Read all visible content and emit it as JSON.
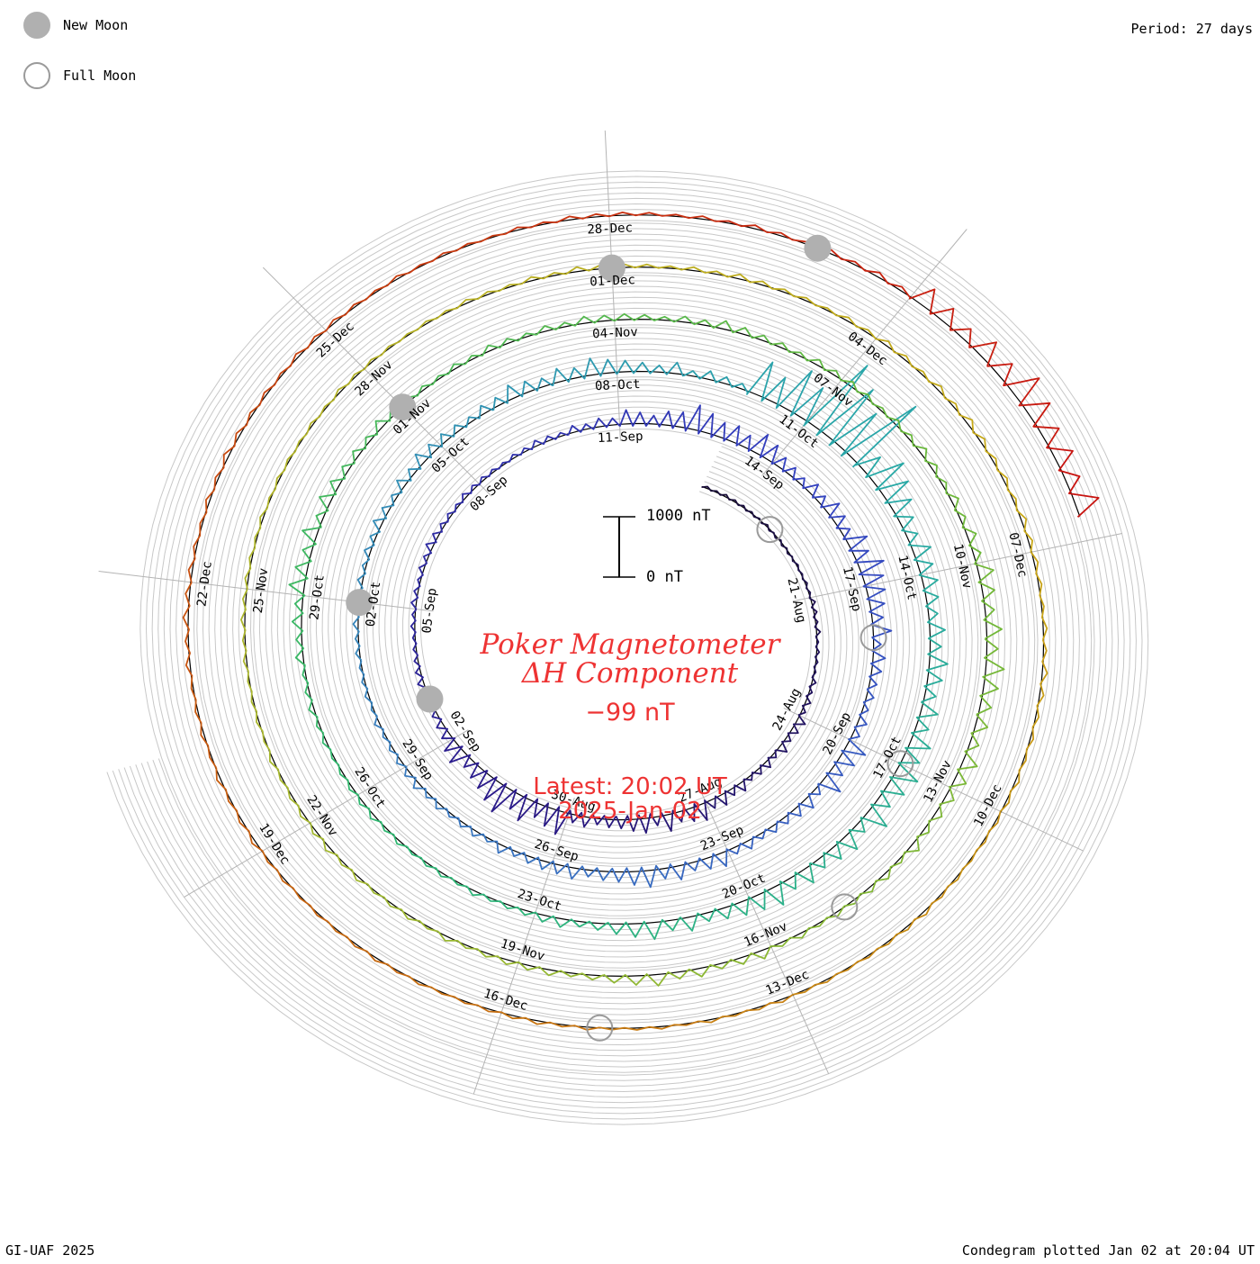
{
  "header": {
    "period": "Period: 27 days"
  },
  "legend": {
    "new_moon": "New Moon",
    "full_moon": "Full Moon"
  },
  "footer": {
    "credit": "GI-UAF 2025",
    "plotted": "Condegram plotted Jan 02 at 20:04 UT"
  },
  "scale": {
    "top": "1000 nT",
    "bottom": "0 nT"
  },
  "center": {
    "station": "Poker Magnetometer",
    "component": "ΔH Component",
    "value": "−99 nT",
    "latest_time": "Latest: 20:02 UT",
    "latest_date": "2025-Jan-02"
  },
  "chart_data": {
    "type": "line",
    "subtype": "polar spiral condegram",
    "period_days": 27,
    "start_date": "2024-08-17",
    "end_date": "2025-01-02",
    "end_time_ut": "20:02",
    "latest_value_nT": -99,
    "scale_bar_nT": [
      0,
      1000
    ],
    "colors": {
      "gradient": [
        "#1a0e3a",
        "#2a1a8a",
        "#3340c0",
        "#3a7ac0",
        "#28a8a8",
        "#30b870",
        "#6ab83a",
        "#a8b830",
        "#c8a818",
        "#c85a10",
        "#c81010"
      ],
      "grid": "#c8c8c8",
      "spoke": "#b4b4b4",
      "text_red": "#ee3333",
      "new_moon": "#b0b0b0",
      "full_moon": "#9a9a9a"
    },
    "date_labels": [
      "21-Aug",
      "24-Aug",
      "27-Aug",
      "30-Aug",
      "02-Sep",
      "05-Sep",
      "08-Sep",
      "11-Sep",
      "14-Sep",
      "17-Sep",
      "20-Sep",
      "23-Sep",
      "26-Sep",
      "29-Sep",
      "02-Oct",
      "05-Oct",
      "08-Oct",
      "11-Oct",
      "14-Oct",
      "17-Oct",
      "20-Oct",
      "23-Oct",
      "26-Oct",
      "29-Oct",
      "01-Nov",
      "04-Nov",
      "07-Nov",
      "10-Nov",
      "13-Nov",
      "16-Nov",
      "19-Nov",
      "22-Nov",
      "25-Nov",
      "28-Nov",
      "01-Dec",
      "04-Dec",
      "07-Dec",
      "10-Dec",
      "13-Dec",
      "16-Dec",
      "19-Dec",
      "22-Dec",
      "25-Dec",
      "28-Dec"
    ],
    "new_moons": [
      "2024-09-03",
      "2024-10-02",
      "2024-11-01",
      "2024-12-01",
      "2024-12-30"
    ],
    "full_moons": [
      "2024-08-19",
      "2024-09-18",
      "2024-10-17",
      "2024-11-15",
      "2024-12-15"
    ],
    "daily_delta_h_nT": [
      {
        "date": "2024-08-17",
        "min": -40,
        "max": 40
      },
      {
        "date": "2024-08-18",
        "min": -30,
        "max": 60
      },
      {
        "date": "2024-08-19",
        "min": -20,
        "max": 80
      },
      {
        "date": "2024-08-20",
        "min": -30,
        "max": 40
      },
      {
        "date": "2024-08-21",
        "min": -60,
        "max": 60
      },
      {
        "date": "2024-08-22",
        "min": -40,
        "max": 50
      },
      {
        "date": "2024-08-23",
        "min": -80,
        "max": 70
      },
      {
        "date": "2024-08-24",
        "min": -150,
        "max": 60
      },
      {
        "date": "2024-08-25",
        "min": -120,
        "max": 70
      },
      {
        "date": "2024-08-26",
        "min": -200,
        "max": 80
      },
      {
        "date": "2024-08-27",
        "min": -300,
        "max": 150
      },
      {
        "date": "2024-08-28",
        "min": -260,
        "max": 200
      },
      {
        "date": "2024-08-29",
        "min": -180,
        "max": 180
      },
      {
        "date": "2024-08-30",
        "min": -420,
        "max": 200
      },
      {
        "date": "2024-08-31",
        "min": -500,
        "max": 150
      },
      {
        "date": "2024-09-01",
        "min": -300,
        "max": 120
      },
      {
        "date": "2024-09-02",
        "min": -150,
        "max": 60
      },
      {
        "date": "2024-09-03",
        "min": -100,
        "max": 50
      },
      {
        "date": "2024-09-04",
        "min": -60,
        "max": 40
      },
      {
        "date": "2024-09-05",
        "min": -80,
        "max": 40
      },
      {
        "date": "2024-09-06",
        "min": -120,
        "max": 60
      },
      {
        "date": "2024-09-07",
        "min": -80,
        "max": 50
      },
      {
        "date": "2024-09-08",
        "min": -60,
        "max": 40
      },
      {
        "date": "2024-09-09",
        "min": -100,
        "max": 60
      },
      {
        "date": "2024-09-10",
        "min": -150,
        "max": 80
      },
      {
        "date": "2024-09-11",
        "min": -250,
        "max": 120
      },
      {
        "date": "2024-09-12",
        "min": -450,
        "max": 150
      },
      {
        "date": "2024-09-13",
        "min": -380,
        "max": 100
      },
      {
        "date": "2024-09-14",
        "min": -200,
        "max": 80
      },
      {
        "date": "2024-09-15",
        "min": -250,
        "max": 100
      },
      {
        "date": "2024-09-16",
        "min": -420,
        "max": 130
      },
      {
        "date": "2024-09-17",
        "min": -300,
        "max": 90
      },
      {
        "date": "2024-09-18",
        "min": -200,
        "max": 70
      },
      {
        "date": "2024-09-19",
        "min": -150,
        "max": 60
      },
      {
        "date": "2024-09-20",
        "min": -350,
        "max": 100
      },
      {
        "date": "2024-09-21",
        "min": -200,
        "max": 80
      },
      {
        "date": "2024-09-22",
        "min": -150,
        "max": 60
      },
      {
        "date": "2024-09-23",
        "min": -250,
        "max": 120
      },
      {
        "date": "2024-09-24",
        "min": -300,
        "max": 200
      },
      {
        "date": "2024-09-25",
        "min": -200,
        "max": 150
      },
      {
        "date": "2024-09-26",
        "min": -150,
        "max": 100
      },
      {
        "date": "2024-09-27",
        "min": -100,
        "max": 60
      },
      {
        "date": "2024-09-28",
        "min": -120,
        "max": 70
      },
      {
        "date": "2024-09-29",
        "min": -80,
        "max": 50
      },
      {
        "date": "2024-09-30",
        "min": -60,
        "max": 40
      },
      {
        "date": "2024-10-01",
        "min": -80,
        "max": 40
      },
      {
        "date": "2024-10-02",
        "min": -100,
        "max": 60
      },
      {
        "date": "2024-10-03",
        "min": -150,
        "max": 80
      },
      {
        "date": "2024-10-04",
        "min": -200,
        "max": 100
      },
      {
        "date": "2024-10-05",
        "min": -150,
        "max": 80
      },
      {
        "date": "2024-10-06",
        "min": -250,
        "max": 100
      },
      {
        "date": "2024-10-07",
        "min": -300,
        "max": 120
      },
      {
        "date": "2024-10-08",
        "min": -200,
        "max": 90
      },
      {
        "date": "2024-10-09",
        "min": -150,
        "max": 70
      },
      {
        "date": "2024-10-10",
        "min": -800,
        "max": 200
      },
      {
        "date": "2024-10-11",
        "min": -1400,
        "max": 300
      },
      {
        "date": "2024-10-12",
        "min": -600,
        "max": 150
      },
      {
        "date": "2024-10-13",
        "min": -300,
        "max": 100
      },
      {
        "date": "2024-10-14",
        "min": -250,
        "max": 80
      },
      {
        "date": "2024-10-15",
        "min": -300,
        "max": 100
      },
      {
        "date": "2024-10-16",
        "min": -350,
        "max": 110
      },
      {
        "date": "2024-10-17",
        "min": -400,
        "max": 120
      },
      {
        "date": "2024-10-18",
        "min": -300,
        "max": 100
      },
      {
        "date": "2024-10-19",
        "min": -350,
        "max": 120
      },
      {
        "date": "2024-10-20",
        "min": -250,
        "max": 100
      },
      {
        "date": "2024-10-21",
        "min": -300,
        "max": 90
      },
      {
        "date": "2024-10-22",
        "min": -150,
        "max": 60
      },
      {
        "date": "2024-10-23",
        "min": -80,
        "max": 40
      },
      {
        "date": "2024-10-24",
        "min": -60,
        "max": 40
      },
      {
        "date": "2024-10-25",
        "min": -80,
        "max": 40
      },
      {
        "date": "2024-10-26",
        "min": -60,
        "max": 30
      },
      {
        "date": "2024-10-27",
        "min": -80,
        "max": 40
      },
      {
        "date": "2024-10-28",
        "min": -150,
        "max": 60
      },
      {
        "date": "2024-10-29",
        "min": -250,
        "max": 100
      },
      {
        "date": "2024-10-30",
        "min": -200,
        "max": 80
      },
      {
        "date": "2024-10-31",
        "min": -150,
        "max": 70
      },
      {
        "date": "2024-11-01",
        "min": -80,
        "max": 50
      },
      {
        "date": "2024-11-02",
        "min": -100,
        "max": 60
      },
      {
        "date": "2024-11-03",
        "min": -120,
        "max": 50
      },
      {
        "date": "2024-11-04",
        "min": -100,
        "max": 50
      },
      {
        "date": "2024-11-05",
        "min": -150,
        "max": 60
      },
      {
        "date": "2024-11-06",
        "min": -100,
        "max": 50
      },
      {
        "date": "2024-11-07",
        "min": -80,
        "max": 40
      },
      {
        "date": "2024-11-08",
        "min": -120,
        "max": 60
      },
      {
        "date": "2024-11-09",
        "min": -150,
        "max": 70
      },
      {
        "date": "2024-11-10",
        "min": -250,
        "max": 100
      },
      {
        "date": "2024-11-11",
        "min": -300,
        "max": 100
      },
      {
        "date": "2024-11-12",
        "min": -250,
        "max": 90
      },
      {
        "date": "2024-11-13",
        "min": -150,
        "max": 60
      },
      {
        "date": "2024-11-14",
        "min": -100,
        "max": 50
      },
      {
        "date": "2024-11-15",
        "min": -80,
        "max": 40
      },
      {
        "date": "2024-11-16",
        "min": -150,
        "max": 60
      },
      {
        "date": "2024-11-17",
        "min": -200,
        "max": 70
      },
      {
        "date": "2024-11-18",
        "min": -100,
        "max": 50
      },
      {
        "date": "2024-11-19",
        "min": -80,
        "max": 40
      },
      {
        "date": "2024-11-20",
        "min": -60,
        "max": 40
      },
      {
        "date": "2024-11-21",
        "min": -80,
        "max": 40
      },
      {
        "date": "2024-11-22",
        "min": -60,
        "max": 30
      },
      {
        "date": "2024-11-23",
        "min": -40,
        "max": 30
      },
      {
        "date": "2024-11-24",
        "min": -60,
        "max": 30
      },
      {
        "date": "2024-11-25",
        "min": -50,
        "max": 30
      },
      {
        "date": "2024-11-26",
        "min": -40,
        "max": 30
      },
      {
        "date": "2024-11-27",
        "min": -50,
        "max": 30
      },
      {
        "date": "2024-11-28",
        "min": -40,
        "max": 30
      },
      {
        "date": "2024-11-29",
        "min": -60,
        "max": 30
      },
      {
        "date": "2024-11-30",
        "min": -80,
        "max": 40
      },
      {
        "date": "2024-12-01",
        "min": -60,
        "max": 30
      },
      {
        "date": "2024-12-02",
        "min": -80,
        "max": 40
      },
      {
        "date": "2024-12-03",
        "min": -60,
        "max": 30
      },
      {
        "date": "2024-12-04",
        "min": -80,
        "max": 40
      },
      {
        "date": "2024-12-05",
        "min": -100,
        "max": 50
      },
      {
        "date": "2024-12-06",
        "min": -80,
        "max": 40
      },
      {
        "date": "2024-12-07",
        "min": -60,
        "max": 30
      },
      {
        "date": "2024-12-08",
        "min": -80,
        "max": 40
      },
      {
        "date": "2024-12-09",
        "min": -60,
        "max": 30
      },
      {
        "date": "2024-12-10",
        "min": -40,
        "max": 30
      },
      {
        "date": "2024-12-11",
        "min": -60,
        "max": 30
      },
      {
        "date": "2024-12-12",
        "min": -40,
        "max": 30
      },
      {
        "date": "2024-12-13",
        "min": -50,
        "max": 30
      },
      {
        "date": "2024-12-14",
        "min": -40,
        "max": 30
      },
      {
        "date": "2024-12-15",
        "min": -60,
        "max": 30
      },
      {
        "date": "2024-12-16",
        "min": -40,
        "max": 30
      },
      {
        "date": "2024-12-17",
        "min": -50,
        "max": 30
      },
      {
        "date": "2024-12-18",
        "min": -40,
        "max": 30
      },
      {
        "date": "2024-12-19",
        "min": -60,
        "max": 30
      },
      {
        "date": "2024-12-20",
        "min": -50,
        "max": 30
      },
      {
        "date": "2024-12-21",
        "min": -80,
        "max": 50
      },
      {
        "date": "2024-12-22",
        "min": -60,
        "max": 40
      },
      {
        "date": "2024-12-23",
        "min": -80,
        "max": 40
      },
      {
        "date": "2024-12-24",
        "min": -60,
        "max": 30
      },
      {
        "date": "2024-12-25",
        "min": -50,
        "max": 30
      },
      {
        "date": "2024-12-26",
        "min": -40,
        "max": 30
      },
      {
        "date": "2024-12-27",
        "min": -60,
        "max": 30
      },
      {
        "date": "2024-12-28",
        "min": -50,
        "max": 30
      },
      {
        "date": "2024-12-29",
        "min": -60,
        "max": 30
      },
      {
        "date": "2024-12-30",
        "min": -80,
        "max": 40
      },
      {
        "date": "2024-12-31",
        "min": -350,
        "max": 120
      },
      {
        "date": "2025-01-01",
        "min": -500,
        "max": 150
      },
      {
        "date": "2025-01-02",
        "min": -400,
        "max": 100
      }
    ]
  }
}
